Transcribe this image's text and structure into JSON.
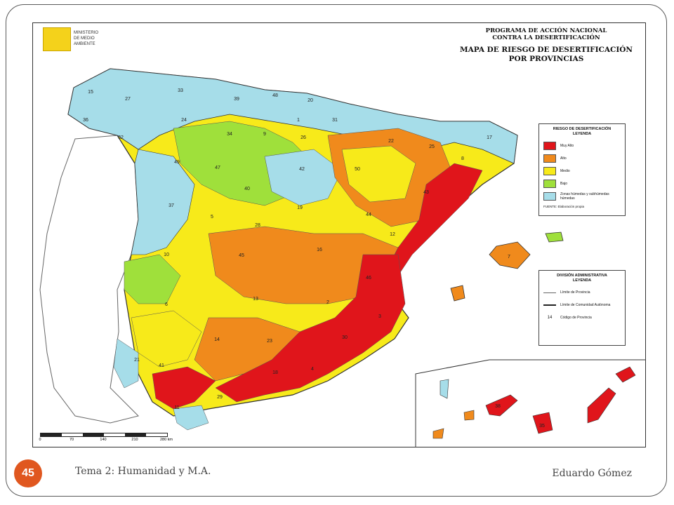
{
  "header": {
    "program_title_line1": "PROGRAMA DE ACCIÓN NACIONAL",
    "program_title_line2": "CONTRA LA DESERTIFICACIÓN",
    "map_title_line1": "MAPA DE RIESGO DE DESERTIFICACIÓN",
    "map_title_line2": "POR PROVINCIAS"
  },
  "logo": {
    "text_line1": "MINISTERIO",
    "text_line2": "DE MEDIO",
    "text_line3": "AMBIENTE"
  },
  "colors": {
    "muy_alto": "#e0151b",
    "alto": "#f08a1c",
    "medio": "#f7ea1a",
    "bajo": "#9fe03b",
    "sin_riesgo": "#a6dde9",
    "portugal": "#ffffff"
  },
  "legend_risk": {
    "title_line1": "RIESGO DE DESERTIFICACIÓN",
    "title_line2": "LEYENDA",
    "items": [
      {
        "label": "Muy Alto",
        "color": "#e0151b"
      },
      {
        "label": "Alto",
        "color": "#f08a1c"
      },
      {
        "label": "Medio",
        "color": "#f7ea1a"
      },
      {
        "label": "Bajo",
        "color": "#9fe03b"
      },
      {
        "label": "Zonas húmedas y subhúmedas húmedas",
        "color": "#a6dde9"
      }
    ],
    "source": "FUENTE: Elaboración propia"
  },
  "legend_division": {
    "title_line1": "DIVISIÓN ADMINISTRATIVA",
    "title_line2": "LEYENDA",
    "items": [
      {
        "symbol": "line",
        "label": "Límite de Provincia"
      },
      {
        "symbol": "thick-line",
        "label": "Límite de Comunidad Autónoma"
      },
      {
        "symbol": "14",
        "label": "Código de Provincia"
      }
    ]
  },
  "province_codes": [
    "15",
    "27",
    "33",
    "39",
    "48",
    "20",
    "36",
    "32",
    "24",
    "34",
    "9",
    "1",
    "31",
    "26",
    "22",
    "25",
    "8",
    "17",
    "49",
    "47",
    "42",
    "50",
    "43",
    "37",
    "40",
    "19",
    "44",
    "10",
    "5",
    "28",
    "45",
    "16",
    "12",
    "46",
    "6",
    "13",
    "2",
    "3",
    "21",
    "41",
    "14",
    "23",
    "30",
    "11",
    "29",
    "18",
    "4",
    "7",
    "35",
    "38"
  ],
  "scale": {
    "ticks": [
      "0",
      "70",
      "140",
      "210",
      "280 km"
    ]
  },
  "footer": {
    "slide_number": "45",
    "course": "Tema 2: Humanidad y M.A.",
    "author": "Eduardo Gómez"
  }
}
